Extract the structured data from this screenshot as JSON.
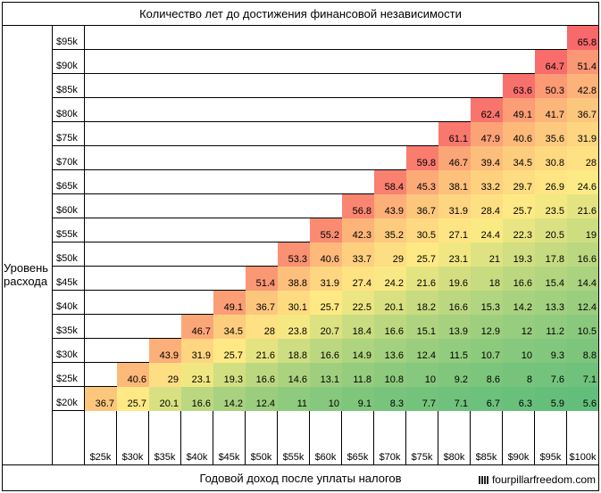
{
  "chart_data": {
    "type": "heatmap",
    "title": "Количество лет до достижения финансовой независимости",
    "xlabel": "Годовой доход после уплаты налогов",
    "ylabel": "Уровень расхода",
    "x_categories": [
      "$25k",
      "$30k",
      "$35k",
      "$40k",
      "$45k",
      "$50k",
      "$55k",
      "$60k",
      "$65k",
      "$70k",
      "$75k",
      "$80k",
      "$85k",
      "$90k",
      "$95k",
      "$100k"
    ],
    "y_categories": [
      "$95k",
      "$90k",
      "$85k",
      "$80k",
      "$75k",
      "$70k",
      "$65k",
      "$60k",
      "$55k",
      "$50k",
      "$45k",
      "$40k",
      "$35k",
      "$30k",
      "$25k",
      "$20k"
    ],
    "values": [
      [
        null,
        null,
        null,
        null,
        null,
        null,
        null,
        null,
        null,
        null,
        null,
        null,
        null,
        null,
        null,
        "65.8"
      ],
      [
        null,
        null,
        null,
        null,
        null,
        null,
        null,
        null,
        null,
        null,
        null,
        null,
        null,
        null,
        "64.7",
        "51.4"
      ],
      [
        null,
        null,
        null,
        null,
        null,
        null,
        null,
        null,
        null,
        null,
        null,
        null,
        null,
        "63.6",
        "50.3",
        "42.8"
      ],
      [
        null,
        null,
        null,
        null,
        null,
        null,
        null,
        null,
        null,
        null,
        null,
        null,
        "62.4",
        "49.1",
        "41.7",
        "36.7"
      ],
      [
        null,
        null,
        null,
        null,
        null,
        null,
        null,
        null,
        null,
        null,
        null,
        "61.1",
        "47.9",
        "40.6",
        "35.6",
        "31.9"
      ],
      [
        null,
        null,
        null,
        null,
        null,
        null,
        null,
        null,
        null,
        null,
        "59.8",
        "46.7",
        "39.4",
        "34.5",
        "30.8",
        "28"
      ],
      [
        null,
        null,
        null,
        null,
        null,
        null,
        null,
        null,
        null,
        "58.4",
        "45.3",
        "38.1",
        "33.2",
        "29.7",
        "26.9",
        "24.6"
      ],
      [
        null,
        null,
        null,
        null,
        null,
        null,
        null,
        null,
        "56.8",
        "43.9",
        "36.7",
        "31.9",
        "28.4",
        "25.7",
        "23.5",
        "21.6"
      ],
      [
        null,
        null,
        null,
        null,
        null,
        null,
        null,
        "55.2",
        "42.3",
        "35.2",
        "30.5",
        "27.1",
        "24.4",
        "22.3",
        "20.5",
        "19"
      ],
      [
        null,
        null,
        null,
        null,
        null,
        null,
        "53.3",
        "40.6",
        "33.7",
        "29",
        "25.7",
        "23.1",
        "21",
        "19.3",
        "17.8",
        "16.6"
      ],
      [
        null,
        null,
        null,
        null,
        null,
        "51.4",
        "38.8",
        "31.9",
        "27.4",
        "24.2",
        "21.6",
        "19.6",
        "18",
        "16.6",
        "15.4",
        "14.4"
      ],
      [
        null,
        null,
        null,
        null,
        "49.1",
        "36.7",
        "30.1",
        "25.7",
        "22.5",
        "20.1",
        "18.2",
        "16.6",
        "15.3",
        "14.2",
        "13.3",
        "12.4"
      ],
      [
        null,
        null,
        null,
        "46.7",
        "34.5",
        "28",
        "23.8",
        "20.7",
        "18.4",
        "16.6",
        "15.1",
        "13.9",
        "12.9",
        "12",
        "11.2",
        "10.5"
      ],
      [
        null,
        null,
        "43.9",
        "31.9",
        "25.7",
        "21.6",
        "18.8",
        "16.6",
        "14.9",
        "13.6",
        "12.4",
        "11.5",
        "10.7",
        "10",
        "9.3",
        "8.8"
      ],
      [
        null,
        "40.6",
        "29",
        "23.1",
        "19.3",
        "16.6",
        "14.6",
        "13.1",
        "11.8",
        "10.8",
        "10",
        "9.2",
        "8.6",
        "8",
        "7.6",
        "7.1"
      ],
      [
        "36.7",
        "25.7",
        "20.1",
        "16.6",
        "14.2",
        "12.4",
        "11",
        "10",
        "9.1",
        "8.3",
        "7.7",
        "7.1",
        "6.7",
        "6.3",
        "5.9",
        "5.6"
      ]
    ],
    "color_scale": {
      "low": "#63be7b",
      "mid": "#ffeb84",
      "high": "#f8696b",
      "min": 5.6,
      "mid_value": 25,
      "max": 65.8
    }
  },
  "credit": "fourpillarfreedom.com"
}
